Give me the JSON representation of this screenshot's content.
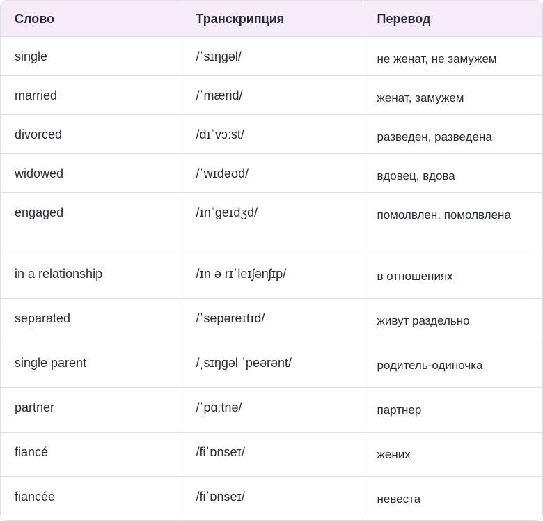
{
  "table": {
    "header": [
      "Слово",
      "Транскрипция",
      "Перевод"
    ],
    "rows": [
      [
        "single",
        "/ˈsɪŋɡəl/",
        "не женат, не замужем"
      ],
      [
        "married",
        "/ˈmærid/",
        "женат, замужем"
      ],
      [
        "divorced",
        "/dɪˈvɔːst/",
        "разведен, разведена"
      ],
      [
        "widowed",
        "/ˈwɪdəʊd/",
        "вдовец, вдова"
      ],
      [
        "engaged",
        "/ɪnˈɡeɪdʒd/",
        "помолвлен, помолвлена"
      ],
      [
        "in a relationship",
        "/ɪn ə rɪˈleɪʃənʃɪp/",
        "в отношениях"
      ],
      [
        "separated",
        "/ˈsepəreɪtɪd/",
        "живут раздельно"
      ],
      [
        "single parent",
        "/ˌsɪŋɡəl ˈpeərənt/",
        "родитель-одиночка"
      ],
      [
        "partner",
        "/ˈpɑːtnə/",
        "партнер"
      ],
      [
        "fiancé",
        "/fiˈɒnseɪ/",
        "жених"
      ],
      [
        "fiancée",
        "/fiˈɒnseɪ/",
        "невеста"
      ]
    ]
  }
}
